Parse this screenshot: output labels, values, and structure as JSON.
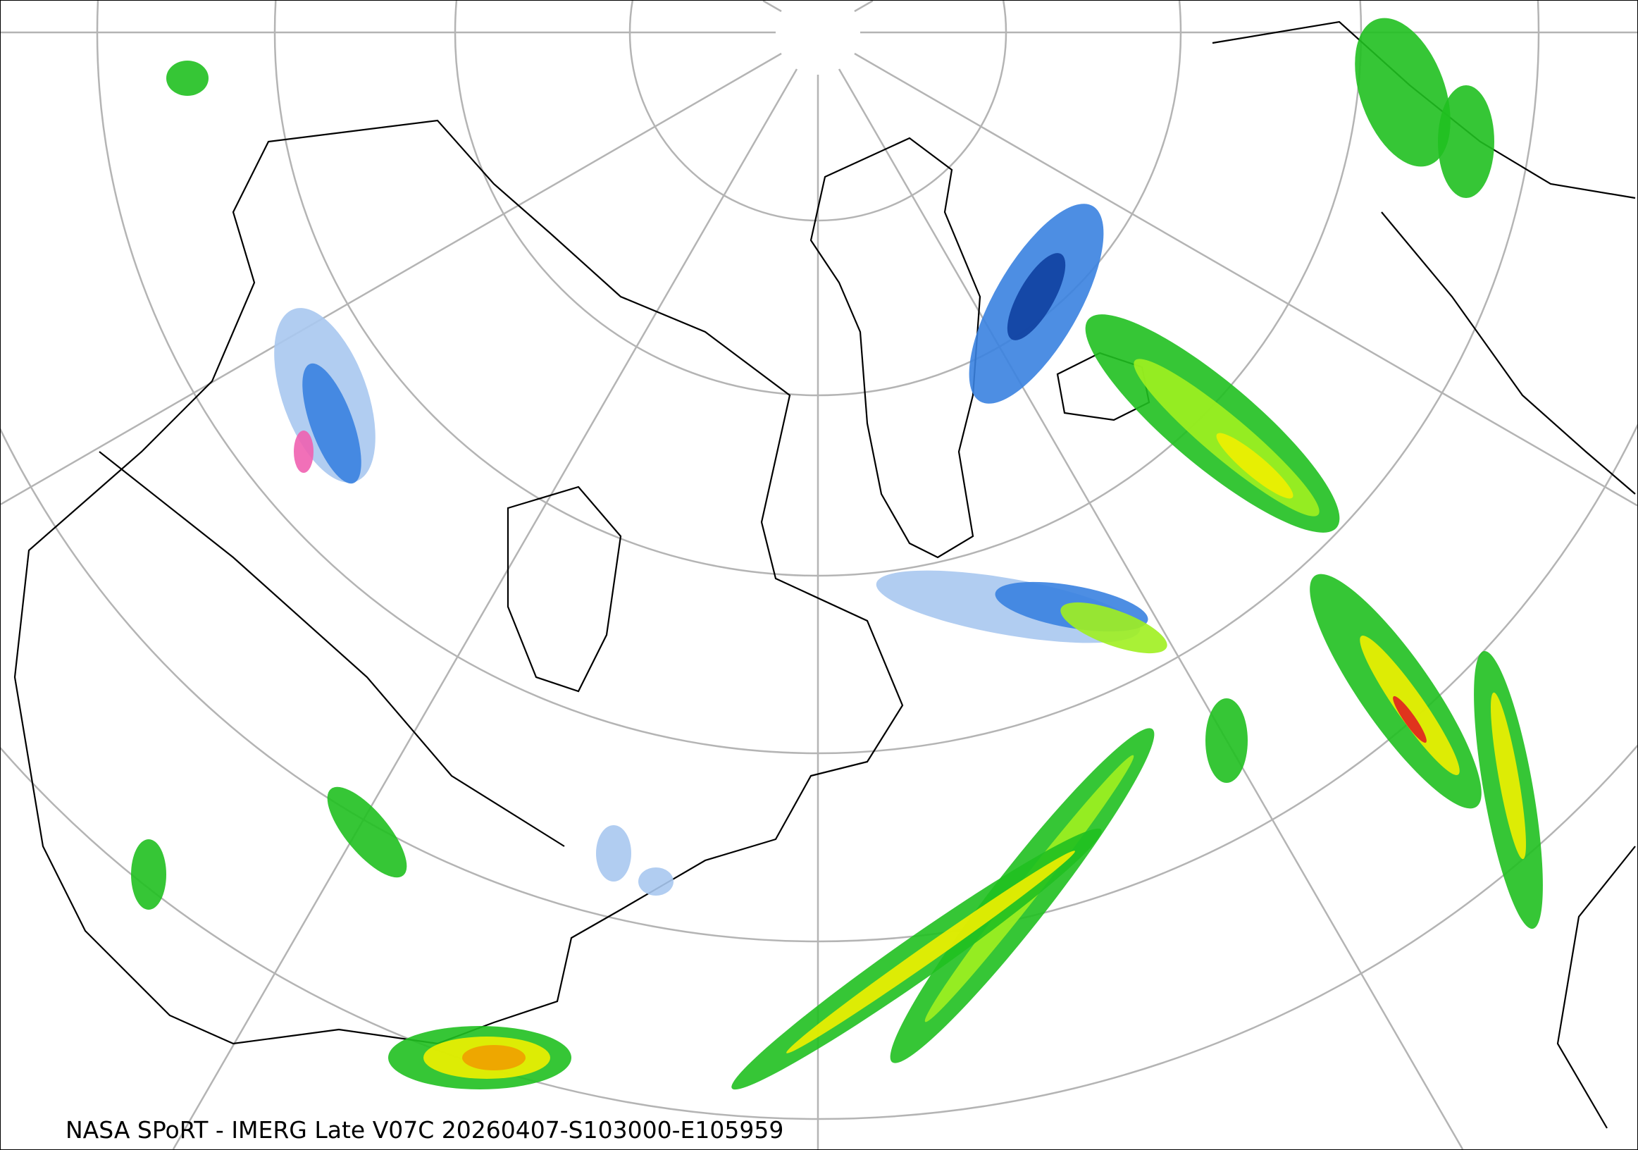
{
  "caption": "NASA SPoRT - IMERG Late V07C 20260407-S103000-E105959",
  "projection": "polar-stereographic",
  "graticule_color": "#b4b4b4",
  "coastline_color": "#000000",
  "precip_colors": {
    "light_blue": "#a8c8f0",
    "blue": "#3a82e0",
    "dark_blue": "#1040a0",
    "pink": "#f060b0",
    "dark_green": "#106010",
    "green": "#20c020",
    "light_green": "#a0f020",
    "yellow": "#f0f000",
    "orange": "#f0a000",
    "red": "#e02020"
  }
}
